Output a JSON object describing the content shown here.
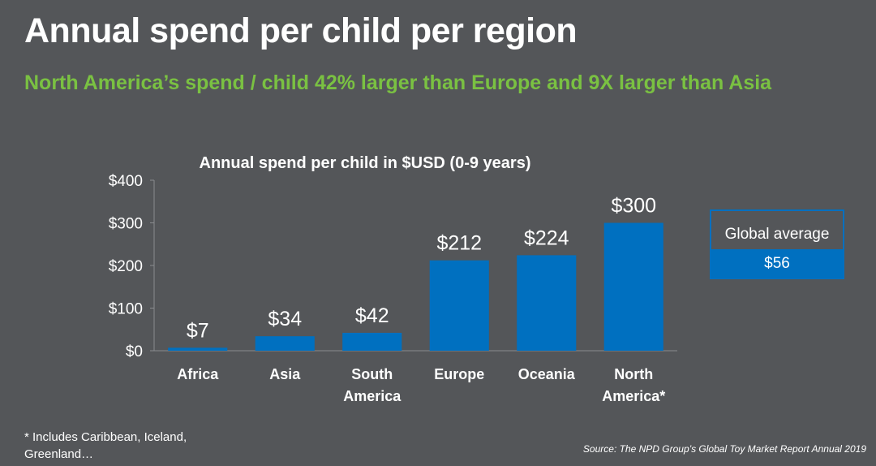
{
  "slide": {
    "title": "Annual spend per child per region",
    "subtitle": "North America’s spend / child 42% larger than Europe and 9X larger than Asia",
    "footnote": "* Includes Caribbean, Iceland, Greenland…",
    "source": "Source: The NPD Group’s Global Toy Market Report Annual 2019"
  },
  "legend": {
    "label": "Global average",
    "value": "$56"
  },
  "colors": {
    "background": "#545659",
    "bar": "#0070c0",
    "subtitle": "#7ac142",
    "gridline": "#8a8c8f"
  },
  "chart_data": {
    "type": "bar",
    "title": "Annual spend per child in $USD (0-9 years)",
    "categories": [
      "Africa",
      "Asia",
      "South America",
      "Europe",
      "Oceania",
      "North America*"
    ],
    "category_lines": [
      [
        "Africa"
      ],
      [
        "Asia"
      ],
      [
        "South",
        "America"
      ],
      [
        "Europe"
      ],
      [
        "Oceania"
      ],
      [
        "North",
        "America*"
      ]
    ],
    "values": [
      7,
      34,
      42,
      212,
      224,
      300
    ],
    "data_labels": [
      "$7",
      "$34",
      "$42",
      "$212",
      "$224",
      "$300"
    ],
    "y_ticks": [
      0,
      100,
      200,
      300,
      400
    ],
    "y_tick_labels": [
      "$0",
      "$100",
      "$200",
      "$300",
      "$400"
    ],
    "ylim": [
      0,
      400
    ],
    "xlabel": "",
    "ylabel": "",
    "grid": false
  }
}
